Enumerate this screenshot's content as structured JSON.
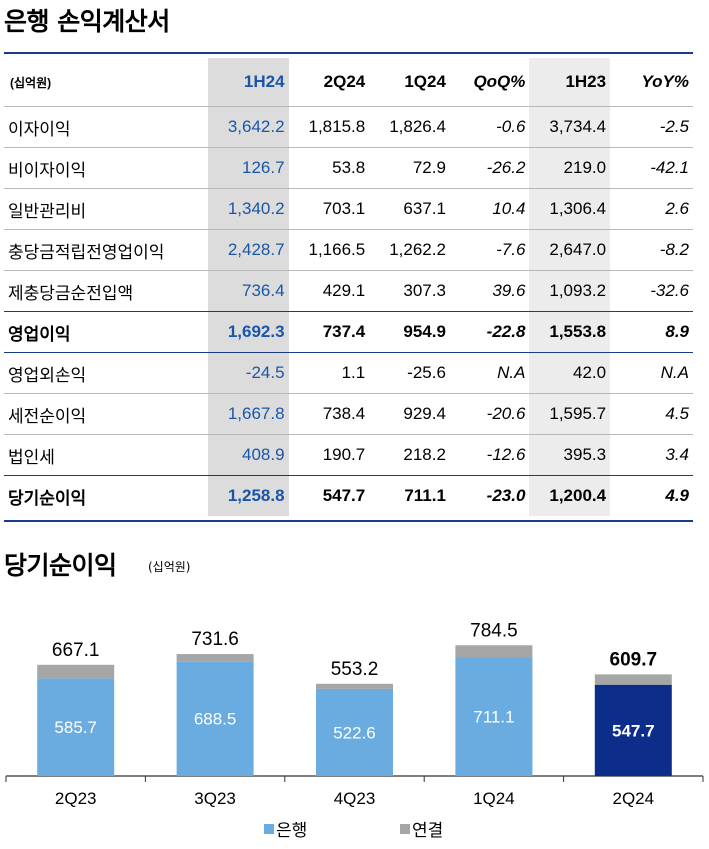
{
  "section1": {
    "title": "은행 손익계산서",
    "unit": "(십억원)",
    "columns": [
      "1H24",
      "2Q24",
      "1Q24",
      "QoQ%",
      "1H23",
      "YoY%"
    ],
    "rows": [
      {
        "label": "이자이익",
        "cells": [
          "3,642.2",
          "1,815.8",
          "1,826.4",
          "-0.6",
          "3,734.4",
          "-2.5"
        ],
        "bold": false
      },
      {
        "label": "비이자이익",
        "cells": [
          "126.7",
          "53.8",
          "72.9",
          "-26.2",
          "219.0",
          "-42.1"
        ],
        "bold": false
      },
      {
        "label": "일반관리비",
        "cells": [
          "1,340.2",
          "703.1",
          "637.1",
          "10.4",
          "1,306.4",
          "2.6"
        ],
        "bold": false
      },
      {
        "label": "충당금적립전영업이익",
        "cells": [
          "2,428.7",
          "1,166.5",
          "1,262.2",
          "-7.6",
          "2,647.0",
          "-8.2"
        ],
        "bold": false
      },
      {
        "label": "제충당금순전입액",
        "cells": [
          "736.4",
          "429.1",
          "307.3",
          "39.6",
          "1,093.2",
          "-32.6"
        ],
        "bold": false
      },
      {
        "label": "영업이익",
        "cells": [
          "1,692.3",
          "737.4",
          "954.9",
          "-22.8",
          "1,553.8",
          "8.9"
        ],
        "bold": true
      },
      {
        "label": "영업외손익",
        "cells": [
          "-24.5",
          "1.1",
          "-25.6",
          "N.A",
          "42.0",
          "N.A"
        ],
        "bold": false
      },
      {
        "label": "세전순이익",
        "cells": [
          "1,667.8",
          "738.4",
          "929.4",
          "-20.6",
          "1,595.7",
          "4.5"
        ],
        "bold": false
      },
      {
        "label": "법인세",
        "cells": [
          "408.9",
          "190.7",
          "218.2",
          "-12.6",
          "395.3",
          "3.4"
        ],
        "bold": false
      },
      {
        "label": "당기순이익",
        "cells": [
          "1,258.8",
          "547.7",
          "711.1",
          "-23.0",
          "1,200.4",
          "4.9"
        ],
        "bold": true
      }
    ]
  },
  "section2": {
    "title": "당기순이익",
    "unit": "(십억원)"
  },
  "chart_data": {
    "type": "bar",
    "stacked": true,
    "categories": [
      "2Q23",
      "3Q23",
      "4Q23",
      "1Q24",
      "2Q24"
    ],
    "series": [
      {
        "name": "은행",
        "values": [
          585.7,
          688.5,
          522.6,
          711.1,
          547.7
        ],
        "color": "#6aace0",
        "highlight_color": "#0d2d8a"
      },
      {
        "name": "연결",
        "values": [
          81.4,
          43.1,
          30.6,
          73.4,
          62.0
        ],
        "color": "#a6a6a6"
      }
    ],
    "totals": [
      "667.1",
      "731.6",
      "553.2",
      "784.5",
      "609.7"
    ],
    "bank_labels": [
      "585.7",
      "688.5",
      "522.6",
      "711.1",
      "547.7"
    ],
    "highlight_category": "2Q24",
    "ylim": [
      0,
      900
    ],
    "legend": "bottom-center",
    "grid": false
  }
}
